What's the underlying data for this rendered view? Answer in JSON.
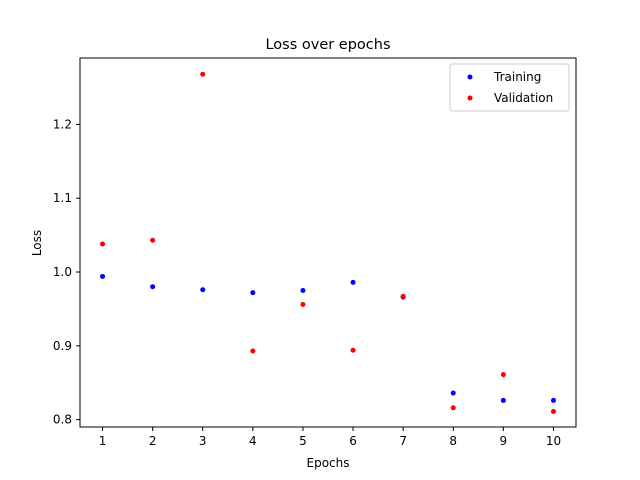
{
  "chart_data": {
    "type": "scatter",
    "title": "Loss over epochs",
    "xlabel": "Epochs",
    "ylabel": "Loss",
    "xlim": [
      0.55,
      10.45
    ],
    "ylim": [
      0.79,
      1.29
    ],
    "xticks": [
      1,
      2,
      3,
      4,
      5,
      6,
      7,
      8,
      9,
      10
    ],
    "yticks": [
      0.8,
      0.9,
      1.0,
      1.1,
      1.2
    ],
    "ytick_labels": [
      "0.8",
      "0.9",
      "1.0",
      "1.1",
      "1.2"
    ],
    "grid": false,
    "legend_position": "top-right",
    "series": [
      {
        "name": "Training",
        "color": "#0000ff",
        "x": [
          1,
          2,
          3,
          4,
          5,
          6,
          7,
          8,
          9,
          10
        ],
        "y": [
          0.994,
          0.98,
          0.976,
          0.972,
          0.975,
          0.986,
          0.966,
          0.836,
          0.826,
          0.826
        ]
      },
      {
        "name": "Validation",
        "color": "#ff0000",
        "x": [
          1,
          2,
          3,
          4,
          5,
          6,
          7,
          8,
          9,
          10
        ],
        "y": [
          1.038,
          1.043,
          1.268,
          0.893,
          0.956,
          0.894,
          0.967,
          0.816,
          0.861,
          0.811
        ]
      }
    ]
  }
}
